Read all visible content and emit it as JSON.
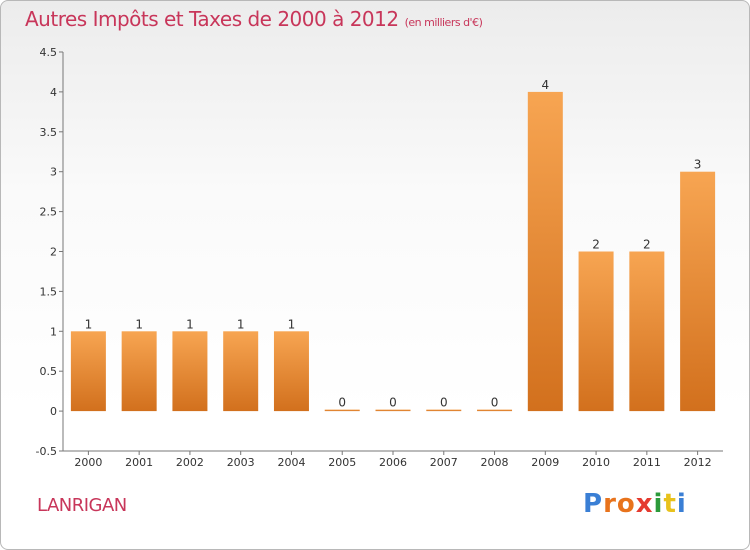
{
  "chart_data": {
    "type": "bar",
    "title": "Autres Impôts et Taxes de 2000 à 2012",
    "subtitle": "(en milliers d'€)",
    "categories": [
      "2000",
      "2001",
      "2002",
      "2003",
      "2004",
      "2005",
      "2006",
      "2007",
      "2008",
      "2009",
      "2010",
      "2011",
      "2012"
    ],
    "values": [
      1,
      1,
      1,
      1,
      1,
      0,
      0,
      0,
      0,
      4,
      2,
      2,
      3
    ],
    "data_labels": [
      "1",
      "1",
      "1",
      "1",
      "1",
      "0",
      "0",
      "0",
      "0",
      "4",
      "2",
      "2",
      "3"
    ],
    "y_ticks": [
      "-0.5",
      "0",
      "0.5",
      "1",
      "1.5",
      "2",
      "2.5",
      "3",
      "3.5",
      "4",
      "4.5"
    ],
    "ylim": [
      -0.5,
      4.5
    ],
    "grid": false,
    "bar_color_top": "#f7a552",
    "bar_color_bottom": "#d2701d"
  },
  "city": "LANRIGAN",
  "logo": {
    "letters": [
      "P",
      "r",
      "o",
      "x",
      "i",
      "t",
      "i"
    ],
    "colors": [
      "#3a7fd5",
      "#e8731c",
      "#e8731c",
      "#e53a2f",
      "#2c9a3a",
      "#e8c21c",
      "#3a7fd5"
    ]
  }
}
